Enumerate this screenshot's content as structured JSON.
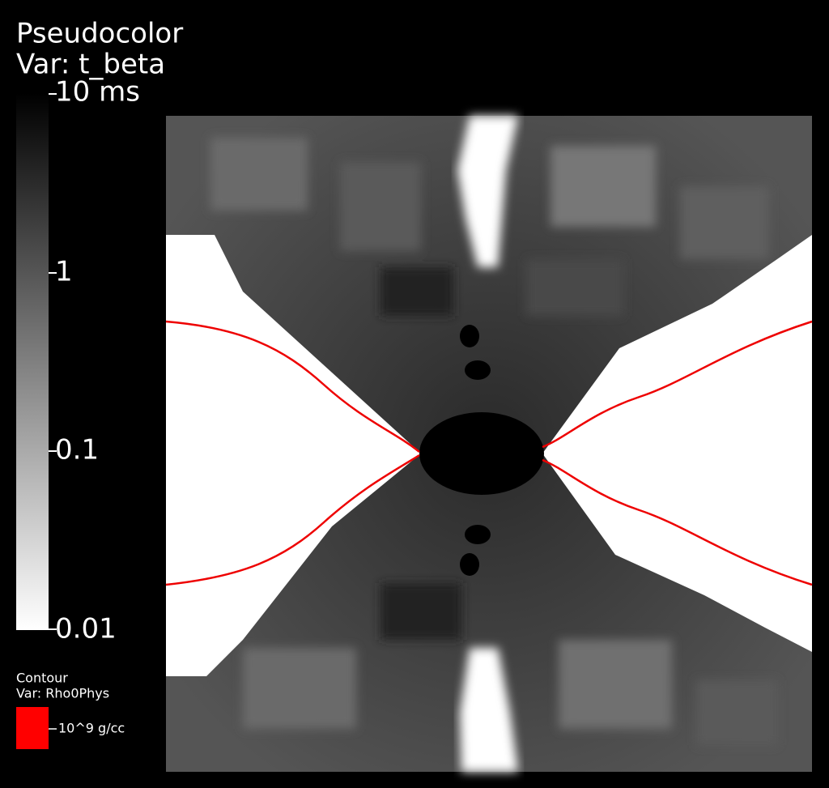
{
  "pseudocolor_legend": {
    "title": "Pseudocolor",
    "variable": "Var: t_beta",
    "ticks": [
      "10 ms",
      "1",
      "0.1",
      "0.01"
    ]
  },
  "contour_legend": {
    "title": "Contour",
    "variable": "Var: Rho0Phys",
    "levels": [
      "10^9 g/cc"
    ]
  }
}
